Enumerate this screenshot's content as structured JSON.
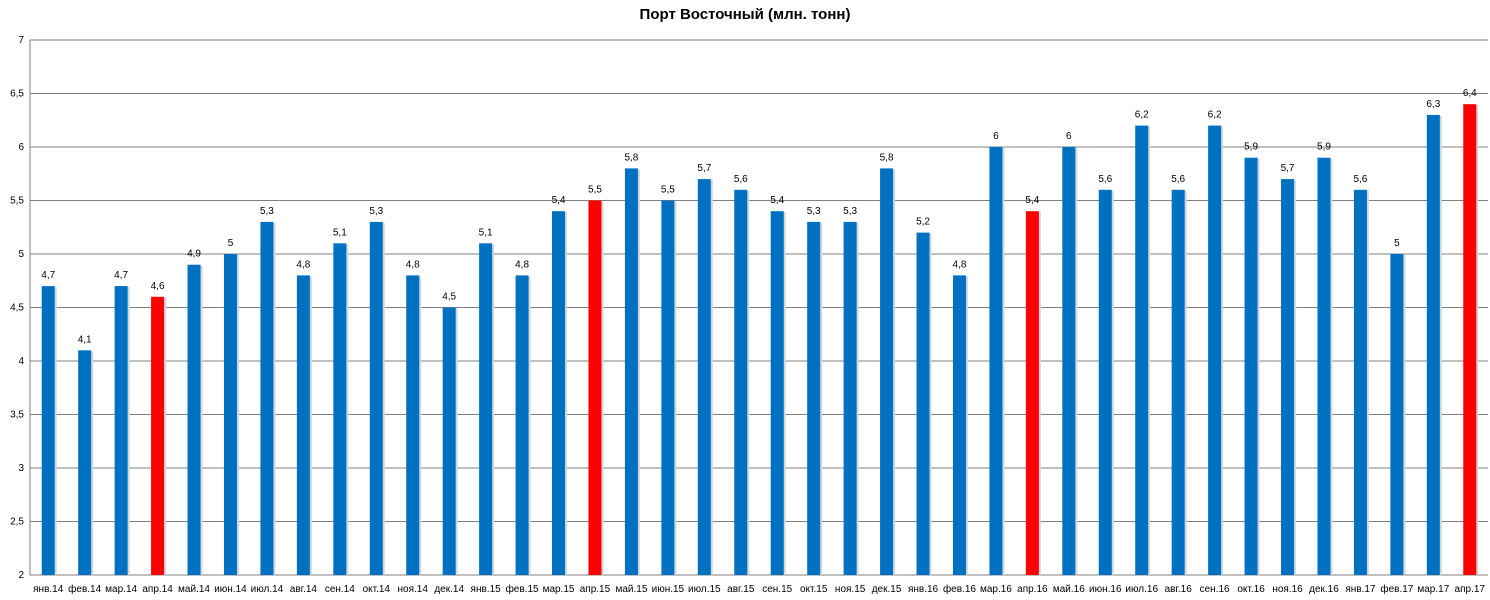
{
  "chart_data": {
    "type": "bar",
    "title": "Порт Восточный (млн. тонн)",
    "xlabel": "",
    "ylabel": "",
    "ylim": [
      2,
      7
    ],
    "yticks": [
      "2",
      "2,5",
      "3",
      "3,5",
      "4",
      "4,5",
      "5",
      "5,5",
      "6",
      "6,5",
      "7"
    ],
    "grid": true,
    "colors": {
      "default": "#0070C0",
      "highlight": "#FF0000",
      "grid": "#808080"
    },
    "categories": [
      "янв.14",
      "фев.14",
      "мар.14",
      "апр.14",
      "май.14",
      "июн.14",
      "июл.14",
      "авг.14",
      "сен.14",
      "окт.14",
      "ноя.14",
      "дек.14",
      "янв.15",
      "фев.15",
      "мар.15",
      "апр.15",
      "май.15",
      "июн.15",
      "июл.15",
      "авг.15",
      "сен.15",
      "окт.15",
      "ноя.15",
      "дек.15",
      "янв.16",
      "фев.16",
      "мар.16",
      "апр.16",
      "май.16",
      "июн.16",
      "июл.16",
      "авг.16",
      "сен.16",
      "окт.16",
      "ноя.16",
      "дек.16",
      "янв.17",
      "фев.17",
      "мар.17",
      "апр.17"
    ],
    "values": [
      4.7,
      4.1,
      4.7,
      4.6,
      4.9,
      5.0,
      5.3,
      4.8,
      5.1,
      5.3,
      4.8,
      4.5,
      5.1,
      4.8,
      5.4,
      5.5,
      5.8,
      5.5,
      5.7,
      5.6,
      5.4,
      5.3,
      5.3,
      5.8,
      5.2,
      4.8,
      6.0,
      5.4,
      6.0,
      5.6,
      6.2,
      5.6,
      6.2,
      5.9,
      5.7,
      5.9,
      5.6,
      5.0,
      6.3,
      6.4
    ],
    "data_labels": [
      "4,7",
      "4,1",
      "4,7",
      "4,6",
      "4,9",
      "5",
      "5,3",
      "4,8",
      "5,1",
      "5,3",
      "4,8",
      "4,5",
      "5,1",
      "4,8",
      "5,4",
      "5,5",
      "5,8",
      "5,5",
      "5,7",
      "5,6",
      "5,4",
      "5,3",
      "5,3",
      "5,8",
      "5,2",
      "4,8",
      "6",
      "5,4",
      "6",
      "5,6",
      "6,2",
      "5,6",
      "6,2",
      "5,9",
      "5,7",
      "5,9",
      "5,6",
      "5",
      "6,3",
      "6,4"
    ],
    "highlighted": [
      "апр.14",
      "апр.15",
      "апр.16",
      "апр.17"
    ]
  }
}
